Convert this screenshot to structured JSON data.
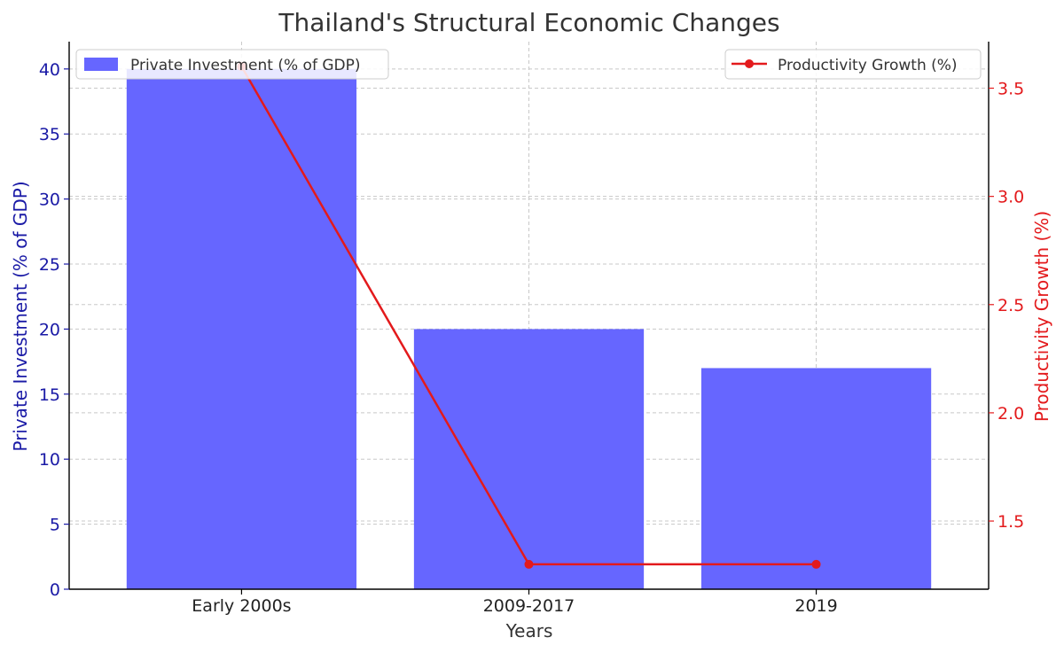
{
  "chart_data": {
    "type": "bar",
    "title": "Thailand's Structural Economic Changes",
    "xlabel": "Years",
    "categories": [
      "Early 2000s",
      "2009-2017",
      "2019"
    ],
    "series": [
      {
        "name": "Private Investment (% of GDP)",
        "type": "bar",
        "axis": "left",
        "color": "#6666ff",
        "values": [
          40,
          20,
          17
        ]
      },
      {
        "name": "Productivity Growth (%)",
        "type": "line",
        "axis": "right",
        "color": "#e31a1c",
        "values": [
          3.6,
          1.3,
          1.3
        ]
      }
    ],
    "y_left": {
      "label": "Private Investment (% of GDP)",
      "color": "#1a1aa6",
      "ylim": [
        0,
        42.1
      ],
      "ticks": [
        "0",
        "5",
        "10",
        "15",
        "20",
        "25",
        "30",
        "35",
        "40"
      ]
    },
    "y_right": {
      "label": "Productivity Growth (%)",
      "color": "#e31a1c",
      "ylim": [
        1.185,
        3.715
      ],
      "ticks": [
        "1.5",
        "2.0",
        "2.5",
        "3.0",
        "3.5"
      ]
    },
    "grid": true,
    "legend_left_placement": "top-left",
    "legend_right_placement": "top-right"
  }
}
